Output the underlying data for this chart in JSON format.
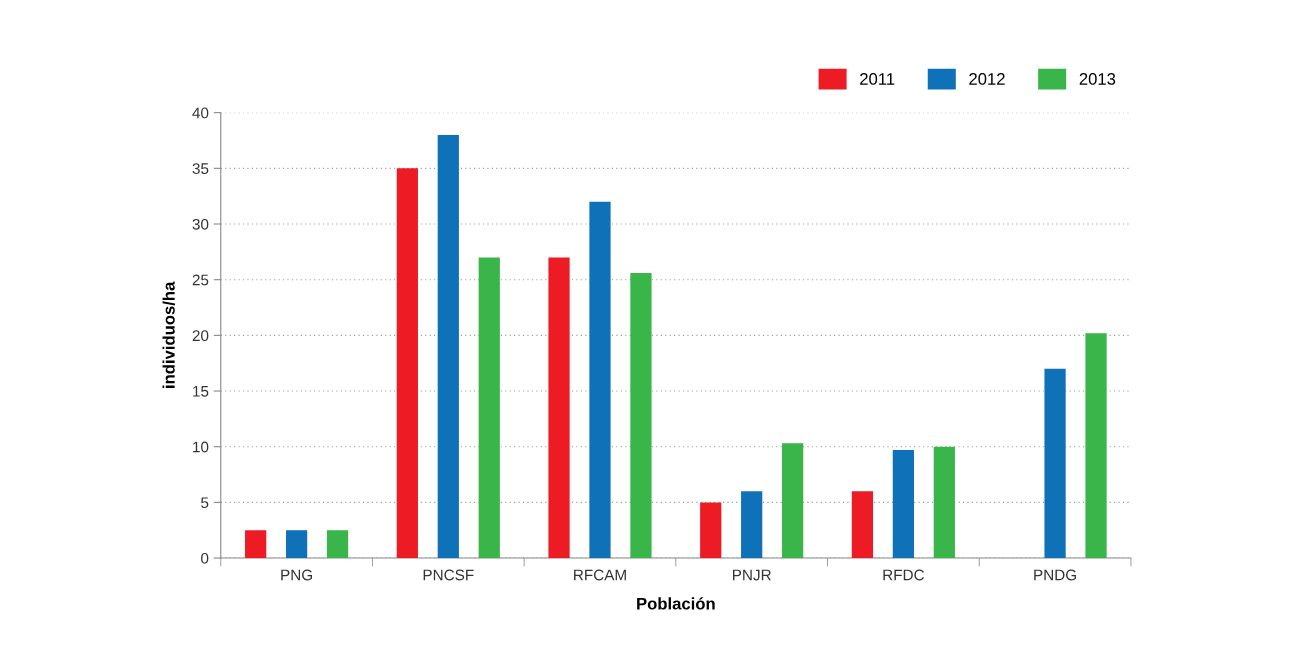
{
  "chart_data": {
    "type": "bar",
    "xlabel": "Población",
    "ylabel": "individuos/ha",
    "categories": [
      "PNG",
      "PNCSF",
      "RFCAM",
      "PNJR",
      "RFDC",
      "PNDG"
    ],
    "series": [
      {
        "name": "2011",
        "color": "#ed1c24",
        "values": [
          2.5,
          35,
          27,
          5,
          6,
          null
        ]
      },
      {
        "name": "2012",
        "color": "#0f72b9",
        "values": [
          2.5,
          38,
          32,
          6,
          9.7,
          17
        ]
      },
      {
        "name": "2013",
        "color": "#3ab54a",
        "values": [
          2.5,
          27,
          25.6,
          10.3,
          10,
          20.2
        ]
      }
    ],
    "ylim": [
      0,
      40
    ],
    "yticks": [
      0,
      5,
      10,
      15,
      20,
      25,
      30,
      35,
      40
    ],
    "grid": "y",
    "legend": "top right"
  }
}
